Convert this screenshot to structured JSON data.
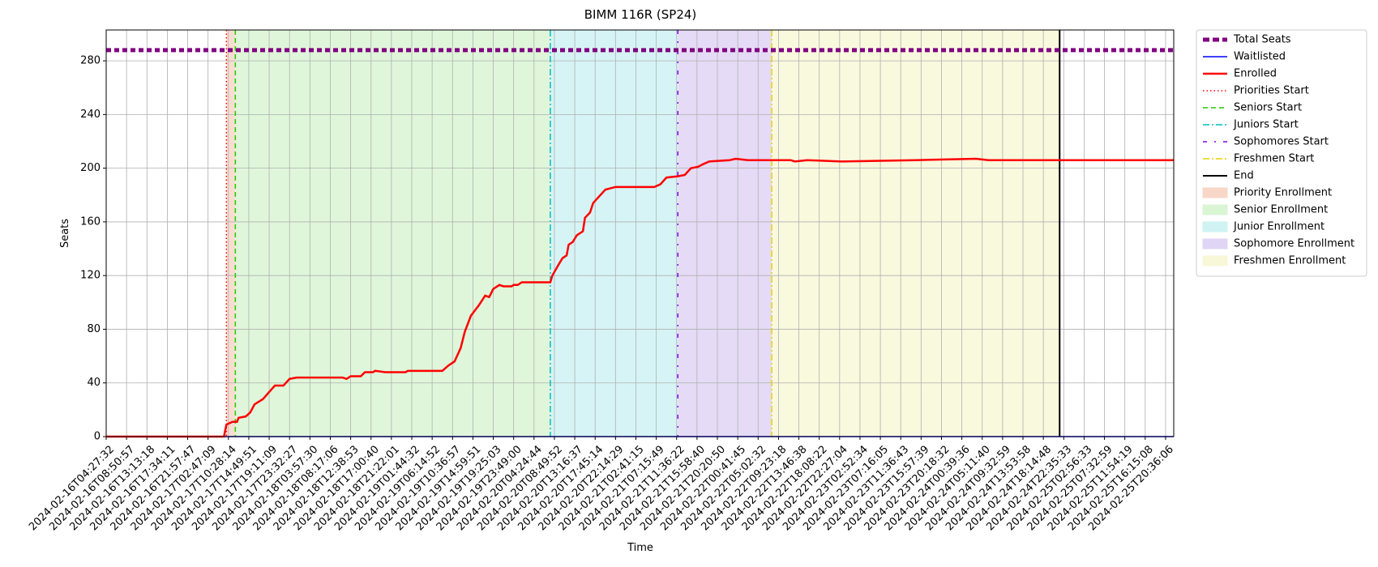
{
  "chart_data": {
    "type": "line",
    "title": "BIMM 116R (SP24)",
    "xlabel": "Time",
    "ylabel": "Seats",
    "xlim": [
      0,
      52.4
    ],
    "ylim": [
      0,
      303
    ],
    "grid": true,
    "legend": "outside-upper-right",
    "yticks": [
      0,
      40,
      80,
      120,
      160,
      200,
      240,
      280
    ],
    "xticks": [
      {
        "value": 0,
        "label": "2024-02-16T04:27:32"
      },
      {
        "value": 1,
        "label": "2024-02-16T08:50:57"
      },
      {
        "value": 2,
        "label": "2024-02-16T13:13:18"
      },
      {
        "value": 3,
        "label": "2024-02-16T17:34:11"
      },
      {
        "value": 4,
        "label": "2024-02-16T21:57:47"
      },
      {
        "value": 5,
        "label": "2024-02-17T02:47:09"
      },
      {
        "value": 6,
        "label": "2024-02-17T10:28:14"
      },
      {
        "value": 7,
        "label": "2024-02-17T14:49:51"
      },
      {
        "value": 8,
        "label": "2024-02-17T19:11:09"
      },
      {
        "value": 9,
        "label": "2024-02-17T23:32:27"
      },
      {
        "value": 10,
        "label": "2024-02-18T03:57:30"
      },
      {
        "value": 11,
        "label": "2024-02-18T08:17:06"
      },
      {
        "value": 12,
        "label": "2024-02-18T12:38:53"
      },
      {
        "value": 13,
        "label": "2024-02-18T17:00:40"
      },
      {
        "value": 14,
        "label": "2024-02-18T21:22:01"
      },
      {
        "value": 15,
        "label": "2024-02-19T01:44:32"
      },
      {
        "value": 16,
        "label": "2024-02-19T06:14:52"
      },
      {
        "value": 17,
        "label": "2024-02-19T10:36:57"
      },
      {
        "value": 18,
        "label": "2024-02-19T14:59:51"
      },
      {
        "value": 19,
        "label": "2024-02-19T19:25:03"
      },
      {
        "value": 20,
        "label": "2024-02-19T23:49:00"
      },
      {
        "value": 21,
        "label": "2024-02-20T04:24:44"
      },
      {
        "value": 22,
        "label": "2024-02-20T08:49:52"
      },
      {
        "value": 23,
        "label": "2024-02-20T13:16:37"
      },
      {
        "value": 24,
        "label": "2024-02-20T17:45:14"
      },
      {
        "value": 25,
        "label": "2024-02-20T22:14:29"
      },
      {
        "value": 26,
        "label": "2024-02-21T02:41:15"
      },
      {
        "value": 27,
        "label": "2024-02-21T07:15:49"
      },
      {
        "value": 28,
        "label": "2024-02-21T11:36:22"
      },
      {
        "value": 29,
        "label": "2024-02-21T15:58:40"
      },
      {
        "value": 30,
        "label": "2024-02-21T20:20:50"
      },
      {
        "value": 31,
        "label": "2024-02-22T00:41:45"
      },
      {
        "value": 32,
        "label": "2024-02-22T05:02:32"
      },
      {
        "value": 33,
        "label": "2024-02-22T09:23:18"
      },
      {
        "value": 34,
        "label": "2024-02-22T13:46:38"
      },
      {
        "value": 35,
        "label": "2024-02-22T18:08:22"
      },
      {
        "value": 36,
        "label": "2024-02-22T22:27:04"
      },
      {
        "value": 37,
        "label": "2024-02-23T02:52:34"
      },
      {
        "value": 38,
        "label": "2024-02-23T07:16:05"
      },
      {
        "value": 39,
        "label": "2024-02-23T11:36:43"
      },
      {
        "value": 40,
        "label": "2024-02-23T15:57:39"
      },
      {
        "value": 41,
        "label": "2024-02-23T20:18:32"
      },
      {
        "value": 42,
        "label": "2024-02-24T00:39:36"
      },
      {
        "value": 43,
        "label": "2024-02-24T05:11:40"
      },
      {
        "value": 44,
        "label": "2024-02-24T09:32:59"
      },
      {
        "value": 45,
        "label": "2024-02-24T13:53:58"
      },
      {
        "value": 46,
        "label": "2024-02-24T18:14:48"
      },
      {
        "value": 47,
        "label": "2024-02-24T22:35:33"
      },
      {
        "value": 48,
        "label": "2024-02-25T02:56:33"
      },
      {
        "value": 49,
        "label": "2024-02-25T07:32:59"
      },
      {
        "value": 50,
        "label": "2024-02-25T11:54:19"
      },
      {
        "value": 51,
        "label": "2024-02-25T16:15:08"
      },
      {
        "value": 52,
        "label": "2024-02-25T20:36:06"
      }
    ],
    "series": [
      {
        "name": "Total Seats",
        "color": "#800080",
        "style": "dashed",
        "width": 5,
        "x": [
          0,
          52.4
        ],
        "values": [
          288,
          288
        ]
      },
      {
        "name": "Waitlisted",
        "color": "#0000ff",
        "style": "solid",
        "width": 1.5,
        "x": [
          0,
          52.4
        ],
        "values": [
          0,
          0
        ]
      },
      {
        "name": "Enrolled",
        "color": "#ff0000",
        "style": "solid",
        "width": 2.5,
        "x": [
          0,
          5.78,
          5.9,
          6.2,
          6.42,
          6.5,
          6.85,
          7.07,
          7.28,
          7.7,
          7.93,
          8.28,
          8.7,
          9.0,
          9.35,
          11.6,
          11.8,
          12.0,
          12.5,
          12.7,
          13.1,
          13.2,
          13.7,
          14.7,
          14.8,
          16.5,
          16.8,
          17.1,
          17.4,
          17.6,
          17.9,
          18.3,
          18.6,
          18.8,
          19.0,
          19.3,
          19.5,
          19.9,
          20.0,
          20.2,
          20.4,
          21.8,
          21.9,
          22.2,
          22.4,
          22.6,
          22.7,
          22.9,
          23.1,
          23.4,
          23.5,
          23.75,
          23.9,
          24.2,
          24.5,
          25.0,
          26.9,
          27.2,
          27.5,
          28.06,
          28.4,
          28.7,
          29.05,
          29.3,
          29.6,
          30.6,
          30.9,
          31.5,
          33.6,
          33.8,
          34.4,
          36.1,
          39.7,
          42.7,
          43.3,
          52.4
        ],
        "values": [
          0,
          0,
          9,
          11,
          11,
          14,
          15,
          18,
          24,
          28,
          32,
          38,
          38,
          43,
          44,
          44,
          43,
          45,
          45,
          48,
          48,
          49,
          48,
          48,
          49,
          49,
          53,
          56,
          66,
          78,
          90,
          98,
          105,
          104,
          110,
          113,
          112,
          112,
          113,
          113,
          115,
          115,
          120,
          128,
          133,
          135,
          143,
          145,
          150,
          153,
          163,
          167,
          174,
          179,
          184,
          186,
          186,
          188,
          193,
          194,
          195,
          200,
          201,
          203,
          205,
          206,
          207,
          206,
          206,
          205,
          206,
          205,
          206,
          207,
          206,
          206
        ]
      }
    ],
    "vlines": [
      {
        "name": "Priorities Start",
        "color": "#ff0000",
        "style": "dotted",
        "x": 5.9
      },
      {
        "name": "Seniors Start",
        "color": "#22cc00",
        "style": "dashed",
        "x": 6.34
      },
      {
        "name": "Juniors Start",
        "color": "#00bfbf",
        "style": "dashdot",
        "x": 21.8
      },
      {
        "name": "Sophomores Start",
        "color": "#7a00ff",
        "style": "loosedashdot",
        "x": 28.06
      },
      {
        "name": "Freshmen Start",
        "color": "#e8d200",
        "style": "dashdot",
        "x": 32.67
      },
      {
        "name": "End",
        "color": "#000000",
        "style": "solid",
        "x": 46.8
      }
    ],
    "spans": [
      {
        "name": "Priority Enrollment",
        "color": "#f8d7c8",
        "x": [
          5.9,
          6.34
        ]
      },
      {
        "name": "Senior Enrollment",
        "color": "#d9f5d3",
        "x": [
          6.34,
          21.8
        ]
      },
      {
        "name": "Junior Enrollment",
        "color": "#cff2f3",
        "x": [
          21.8,
          28.06
        ]
      },
      {
        "name": "Sophomore Enrollment",
        "color": "#e1d5f5",
        "x": [
          28.06,
          32.67
        ]
      },
      {
        "name": "Freshmen Enrollment",
        "color": "#f8f8d8",
        "x": [
          32.67,
          46.8
        ]
      }
    ]
  }
}
